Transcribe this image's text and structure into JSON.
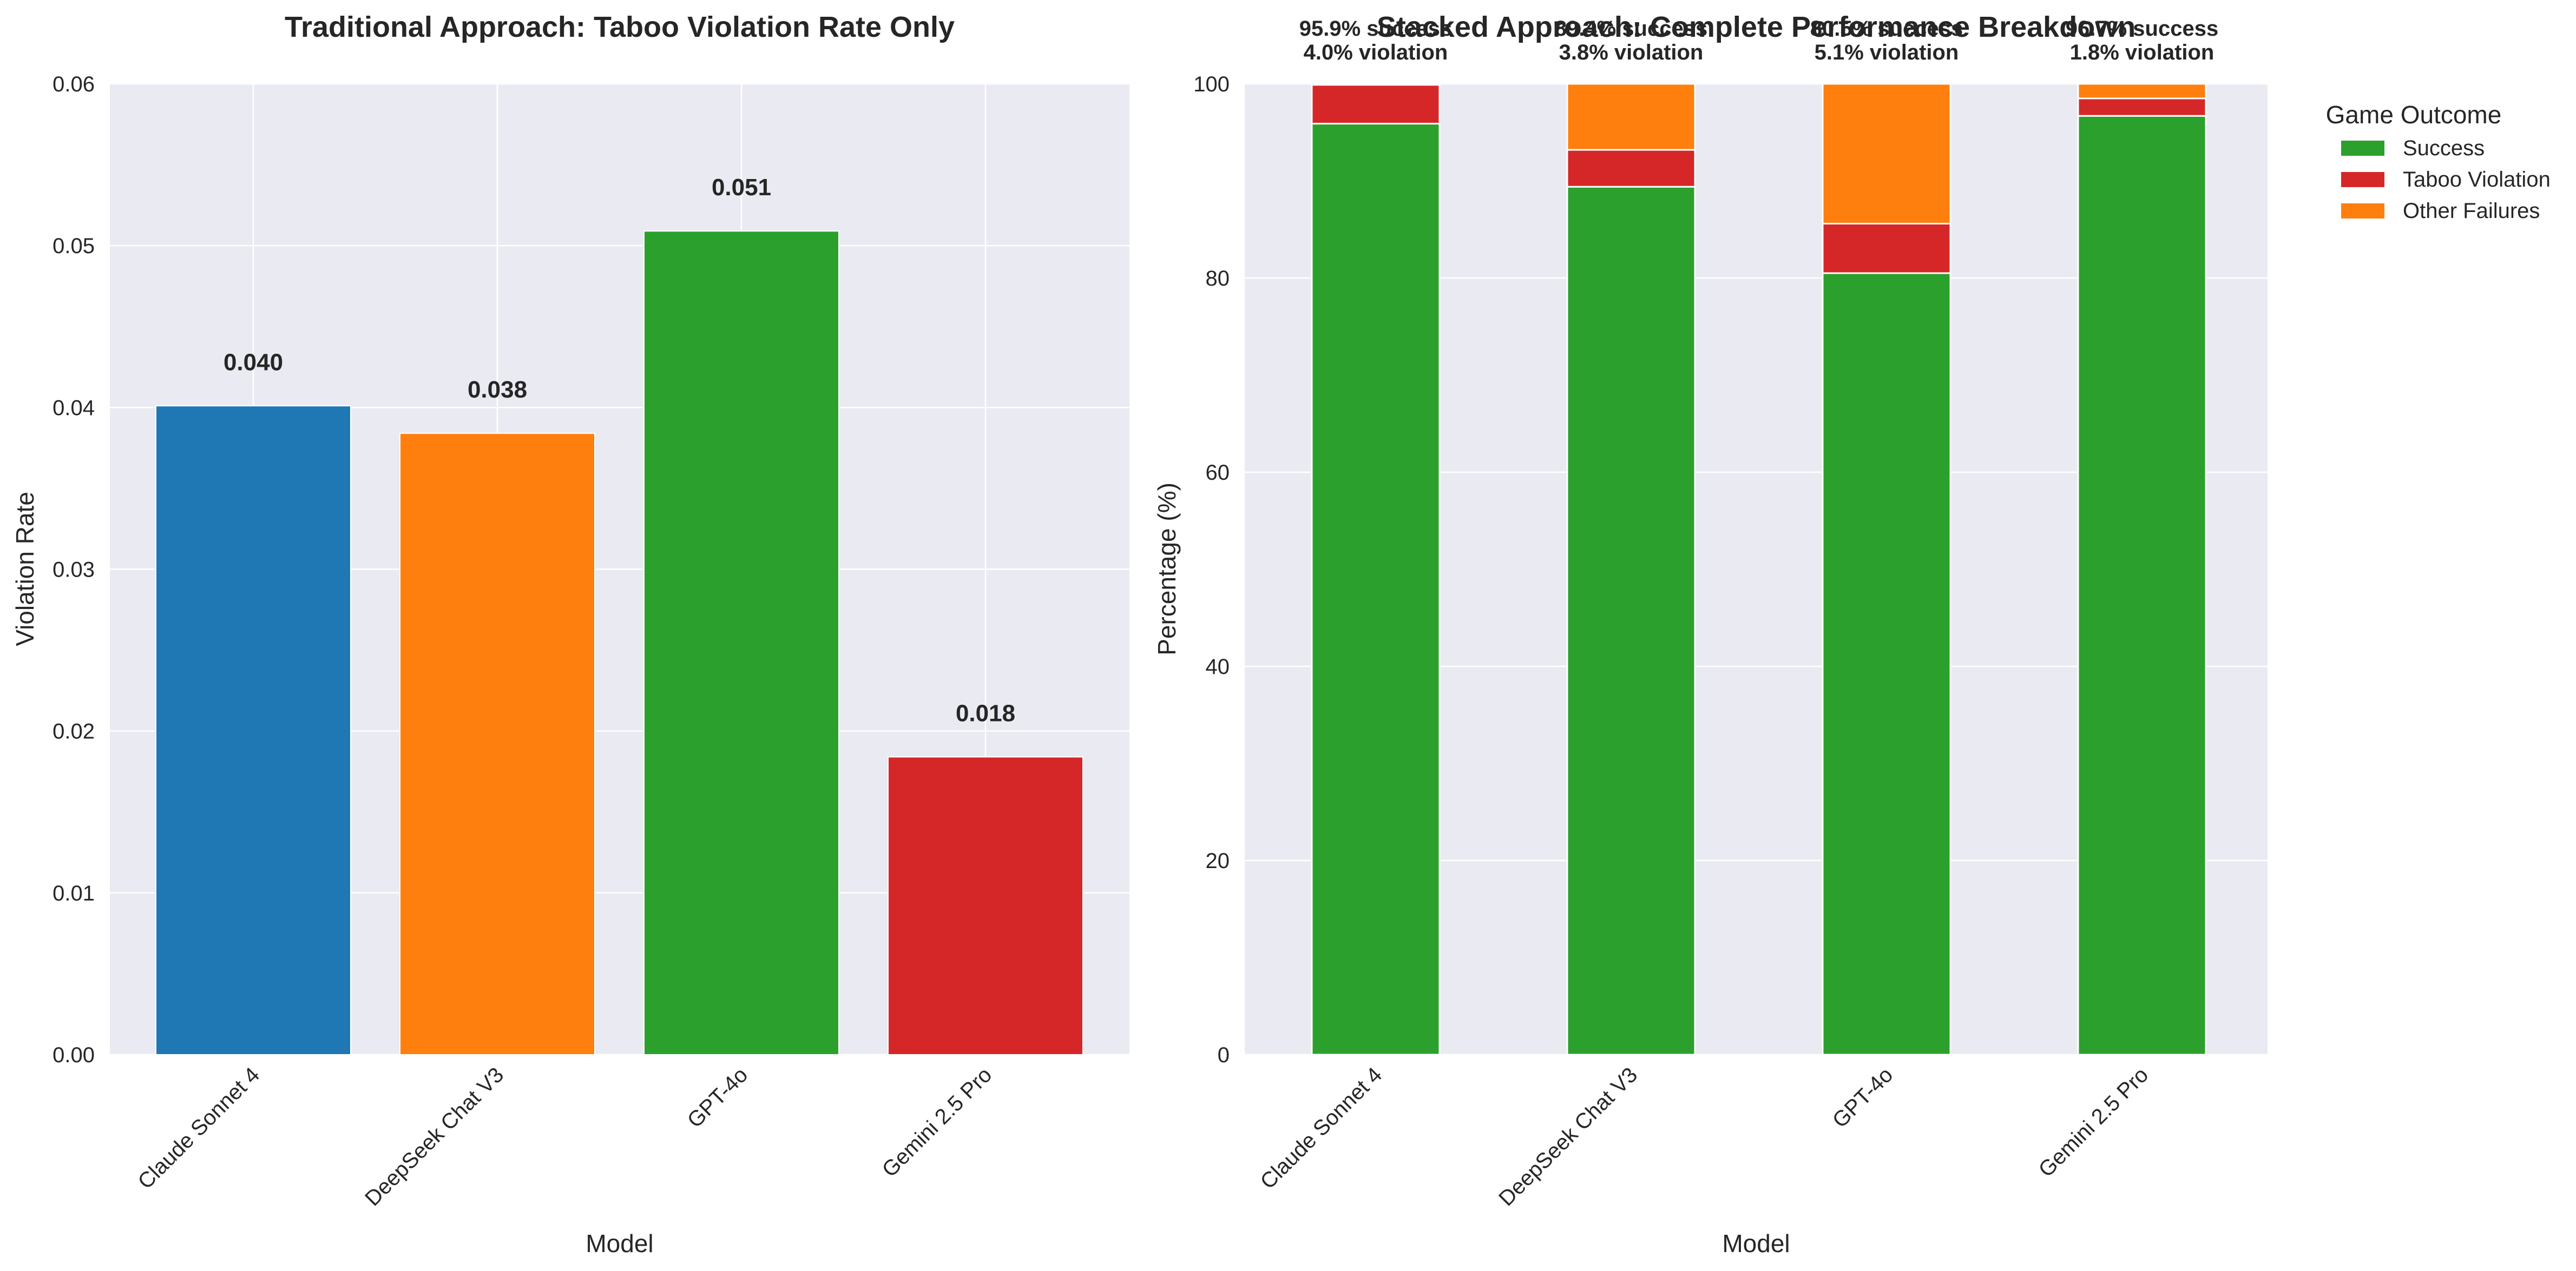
{
  "chart_data": [
    {
      "type": "bar",
      "title": "Traditional Approach: Taboo Violation Rate Only",
      "xlabel": "Model",
      "ylabel": "Violation Rate",
      "categories": [
        "Claude Sonnet 4",
        "DeepSeek Chat V3",
        "GPT-4o",
        "Gemini 2.5 Pro"
      ],
      "values": [
        0.0401,
        0.0384,
        0.0509,
        0.0184
      ],
      "value_labels": [
        "0.040",
        "0.038",
        "0.051",
        "0.018"
      ],
      "bar_colors": [
        "#1f77b4",
        "#ff7f0e",
        "#2ca02c",
        "#d62728"
      ],
      "ylim": [
        0,
        0.06
      ],
      "yticks": [
        0.0,
        0.01,
        0.02,
        0.03,
        0.04,
        0.05,
        0.06
      ],
      "ytick_labels": [
        "0.00",
        "0.01",
        "0.02",
        "0.03",
        "0.04",
        "0.05",
        "0.06"
      ],
      "grid": true
    },
    {
      "type": "bar",
      "stacked": true,
      "title": "Stacked Approach: Complete Performance Breakdown",
      "xlabel": "Model",
      "ylabel": "Percentage (%)",
      "categories": [
        "Claude Sonnet 4",
        "DeepSeek Chat V3",
        "GPT-4o",
        "Gemini 2.5 Pro"
      ],
      "series": [
        {
          "name": "Success",
          "color": "#2ca02c",
          "values": [
            95.9,
            89.4,
            80.5,
            96.7
          ]
        },
        {
          "name": "Taboo Violation",
          "color": "#d62728",
          "values": [
            4.0,
            3.8,
            5.1,
            1.8
          ]
        },
        {
          "name": "Other Failures",
          "color": "#ff7f0e",
          "values": [
            0.1,
            6.8,
            14.4,
            1.5
          ]
        }
      ],
      "annotations": [
        {
          "line1": "95.9% success",
          "line2": "4.0% violation"
        },
        {
          "line1": "89.4% success",
          "line2": "3.8% violation"
        },
        {
          "line1": "80.5% success",
          "line2": "5.1% violation"
        },
        {
          "line1": "96.7% success",
          "line2": "1.8% violation"
        }
      ],
      "ylim": [
        0,
        100
      ],
      "yticks": [
        0,
        20,
        40,
        60,
        80,
        100
      ],
      "ytick_labels": [
        "0",
        "20",
        "40",
        "60",
        "80",
        "100"
      ],
      "legend_title": "Game Outcome",
      "legend_position": "outside-upper-right",
      "grid": true
    }
  ],
  "colors": {
    "axes_background": "#eaeaf2",
    "grid": "#ffffff",
    "text": "#262626"
  }
}
